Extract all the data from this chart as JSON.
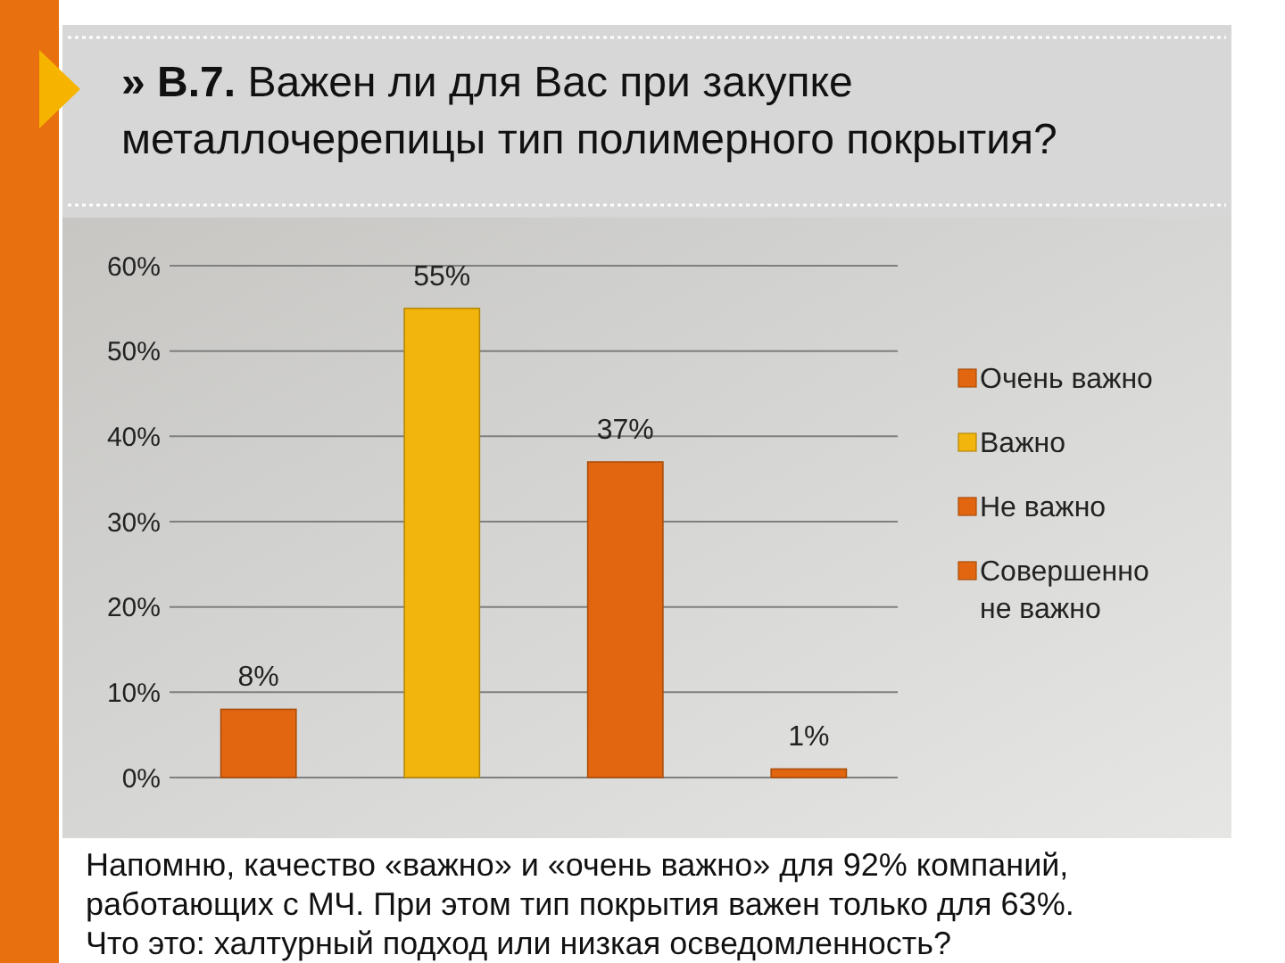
{
  "chart_data": {
    "type": "bar",
    "title": "» В.7. Важен ли для Вас при закупке металлочерепицы тип полимерного покрытия?",
    "categories": [
      null
    ],
    "series": [
      {
        "name": "Очень важно",
        "color": "#e2660f",
        "values": [
          8
        ],
        "value_labels": [
          "8%"
        ]
      },
      {
        "name": "Важно",
        "color": "#f2b50c",
        "values": [
          55
        ],
        "value_labels": [
          "55%"
        ]
      },
      {
        "name": "Не важно",
        "color": "#e2660f",
        "values": [
          37
        ],
        "value_labels": [
          "37%"
        ]
      },
      {
        "name": "Совершенно не важно",
        "color": "#e2660f",
        "values": [
          1
        ],
        "value_labels": [
          "1%"
        ]
      }
    ],
    "ylim": [
      0,
      60
    ],
    "yticks": [
      {
        "value": 0,
        "label": "0%"
      },
      {
        "value": 10,
        "label": "10%"
      },
      {
        "value": 20,
        "label": "20%"
      },
      {
        "value": 30,
        "label": "30%"
      },
      {
        "value": 40,
        "label": "40%"
      },
      {
        "value": 50,
        "label": "50%"
      },
      {
        "value": 60,
        "label": "60%"
      }
    ],
    "grid": "y",
    "legend": "right",
    "annotations": [
      "Напомню, качество «важно» и «очень важно» для 92% компаний, работающих с МЧ. При этом тип покрытия важен только для 63%. Что это: халтурный подход или низкая осведомленность?"
    ]
  }
}
